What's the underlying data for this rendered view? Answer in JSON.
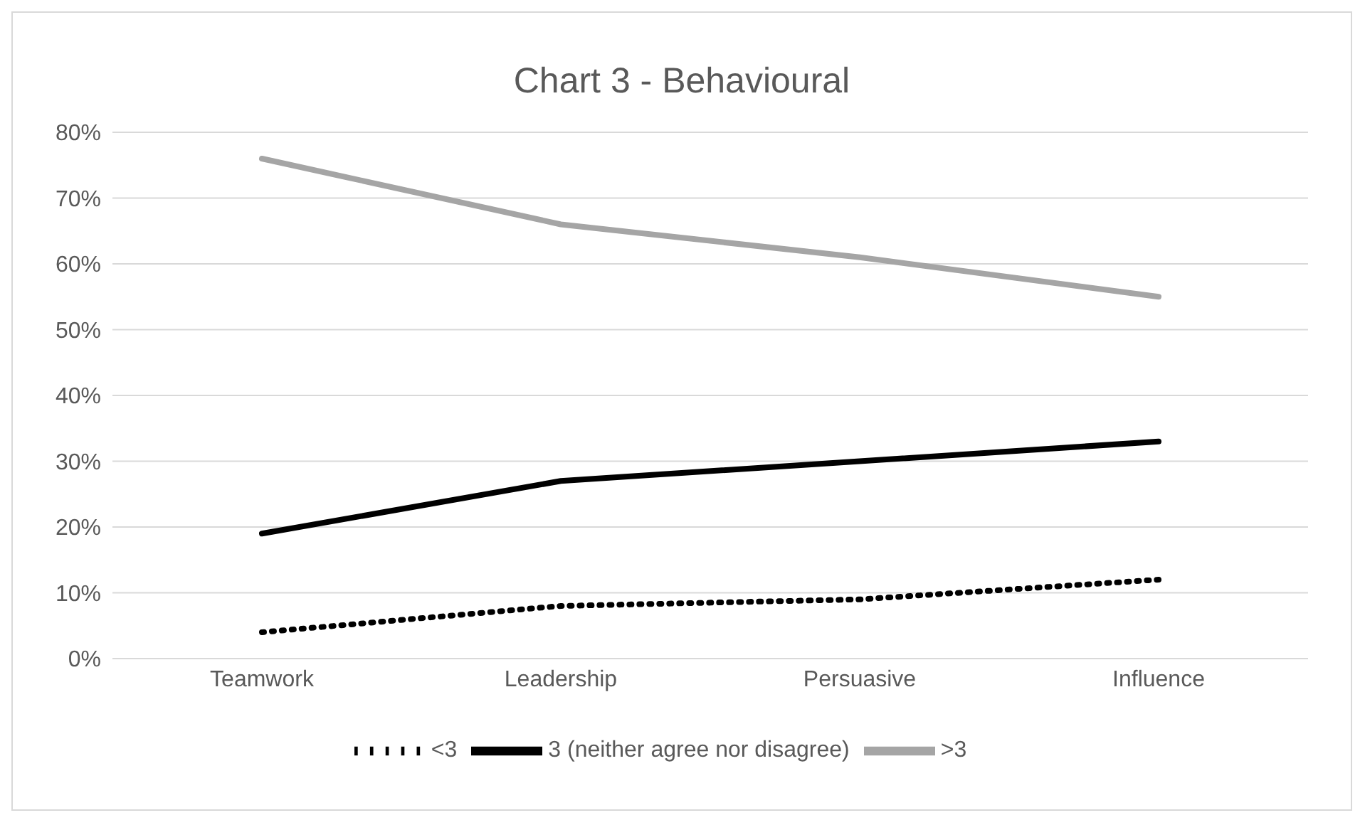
{
  "chart_data": {
    "type": "line",
    "title": "Chart 3 - Behavioural",
    "categories": [
      "Teamwork",
      "Leadership",
      "Persuasive",
      "Influence"
    ],
    "series": [
      {
        "name": "<3",
        "color": "#000000",
        "values": [
          4,
          8,
          9,
          12
        ],
        "line_style": "dotted"
      },
      {
        "name": "3 (neither agree nor disagree)",
        "color": "#000000",
        "values": [
          19,
          27,
          30,
          33
        ],
        "line_style": "solid"
      },
      {
        "name": ">3",
        "color": "#a5a5a5",
        "values": [
          76,
          66,
          61,
          55
        ],
        "line_style": "solid"
      }
    ],
    "ylim": [
      0,
      80
    ],
    "yticks": [
      {
        "value": 0,
        "label": "0%"
      },
      {
        "value": 10,
        "label": "10%"
      },
      {
        "value": 20,
        "label": "20%"
      },
      {
        "value": 30,
        "label": "30%"
      },
      {
        "value": 40,
        "label": "40%"
      },
      {
        "value": 50,
        "label": "50%"
      },
      {
        "value": 60,
        "label": "60%"
      },
      {
        "value": 70,
        "label": "70%"
      },
      {
        "value": 80,
        "label": "80%"
      }
    ],
    "grid": "y",
    "legend": "bottom",
    "marker": "none"
  }
}
